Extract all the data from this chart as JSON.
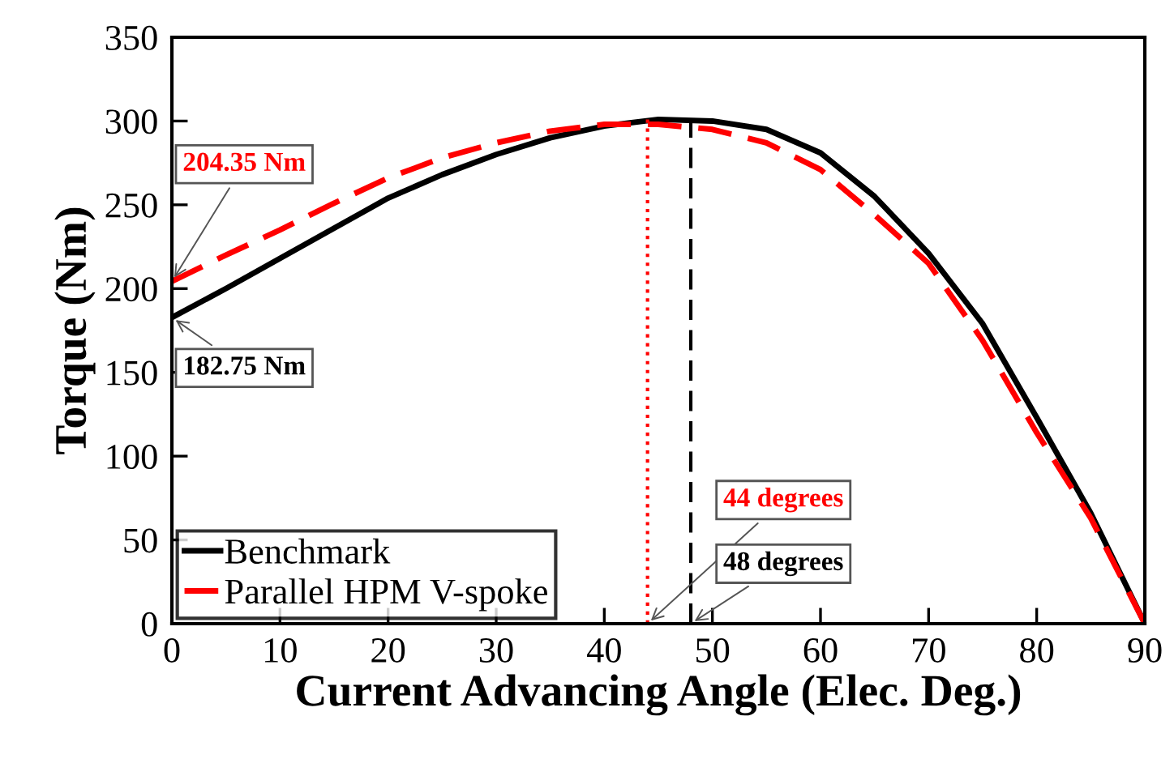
{
  "chart_data": {
    "type": "line",
    "xlabel": "Current Advancing Angle (Elec. Deg.)",
    "ylabel": "Torque (Nm)",
    "x": [
      0,
      5,
      10,
      15,
      20,
      25,
      30,
      35,
      40,
      45,
      50,
      55,
      60,
      65,
      70,
      75,
      80,
      85,
      90
    ],
    "series": [
      {
        "name": "Benchmark",
        "color": "#000000",
        "line_style": "solid",
        "values": [
          182.75,
          200,
          218,
          236,
          254,
          268,
          280,
          290,
          297,
          301,
          300,
          295,
          281,
          255,
          221,
          179,
          123,
          66,
          0
        ]
      },
      {
        "name": "Parallel HPM V-spoke",
        "color": "#ff0000",
        "line_style": "dashed",
        "values": [
          204.35,
          220,
          235,
          251,
          266,
          278,
          287,
          294,
          298,
          298,
          295,
          287,
          271,
          244,
          215,
          169,
          114,
          63,
          0
        ]
      }
    ],
    "xlim": [
      0,
      90
    ],
    "xticks": [
      0,
      10,
      20,
      30,
      40,
      50,
      60,
      70,
      80,
      90
    ],
    "ylim": [
      0,
      350
    ],
    "yticks": [
      0,
      50,
      100,
      150,
      200,
      250,
      300,
      350
    ],
    "ref_lines": [
      {
        "axis": "x",
        "value": 44,
        "color": "#ff0000",
        "line_style": "dotted"
      },
      {
        "axis": "x",
        "value": 48,
        "color": "#000000",
        "line_style": "dashed"
      }
    ],
    "annotations": [
      {
        "text": "204.35 Nm",
        "x": 0,
        "y": 204.35
      },
      {
        "text": "182.75 Nm",
        "x": 0,
        "y": 182.75
      },
      {
        "text": "44 degrees",
        "x": 44,
        "y": 0
      },
      {
        "text": "48 degrees",
        "x": 48,
        "y": 0
      }
    ],
    "legend": "bottom left",
    "grid": false,
    "marker": "none"
  }
}
